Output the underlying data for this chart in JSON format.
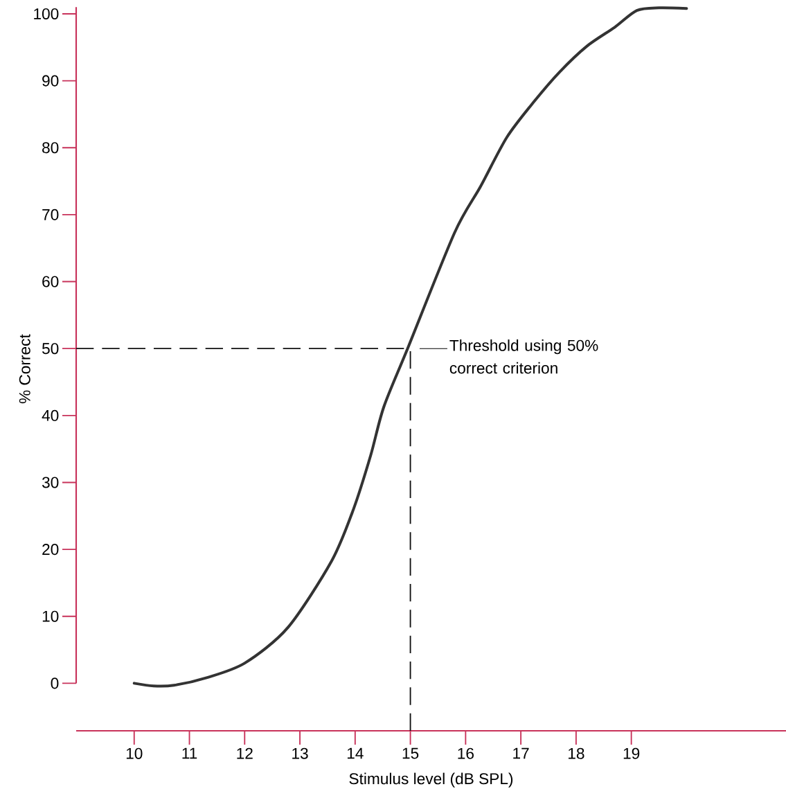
{
  "chart_data": {
    "type": "line",
    "xlabel": "Stimulus level (dB SPL)",
    "ylabel": "% Correct",
    "xlim": [
      8.95,
      21.8
    ],
    "ylim": [
      -7.1,
      101
    ],
    "xticks": [
      10,
      11,
      12,
      13,
      14,
      15,
      16,
      17,
      18,
      19
    ],
    "yticks": [
      0,
      10,
      20,
      30,
      40,
      50,
      60,
      70,
      80,
      90,
      100
    ],
    "series": [
      {
        "color": "#333333",
        "line_style": "solid",
        "marker": "none",
        "x": [
          10,
          10.35,
          10.72,
          11.3,
          12,
          12.78,
          13.57,
          13.97,
          14.28,
          14.52,
          14.96,
          15.8,
          16.27,
          16.75,
          17.25,
          17.7,
          18.2,
          18.7,
          19.1,
          19.5,
          20.0
        ],
        "values": [
          0,
          -0.4,
          -0.3,
          0.8,
          3,
          8.3,
          18.2,
          26,
          34,
          41.3,
          50.2,
          67.3,
          74.2,
          81.6,
          87,
          91.3,
          95.2,
          98,
          100.5,
          100.9,
          100.8
        ]
      }
    ],
    "ref_lines": [
      {
        "axis": "y",
        "value": 50,
        "color": "#111111",
        "line_style": "dashed"
      },
      {
        "axis": "x",
        "value": 15,
        "color": "#111111",
        "line_style": "dashed"
      }
    ],
    "annotations": [
      {
        "text": "Threshold using 50% correct criterion",
        "x": 15,
        "y": 50
      }
    ]
  }
}
